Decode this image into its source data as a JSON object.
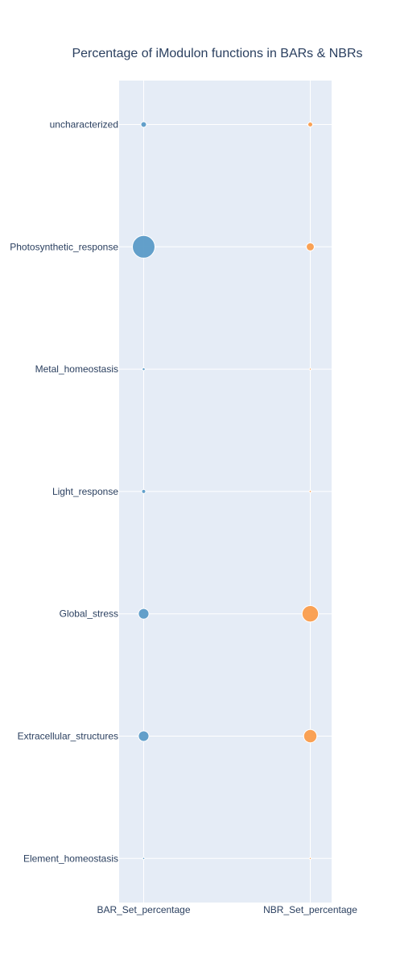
{
  "chart_data": {
    "type": "scatter",
    "title": "Percentage of iModulon functions in BARs & NBRs",
    "x": [
      "BAR_Set_percentage",
      "NBR_Set_percentage"
    ],
    "categories": [
      "uncharacterized",
      "Photosynthetic_response",
      "Metal_homeostasis",
      "Light_response",
      "Global_stress",
      "Extracellular_structures",
      "Element_homeostasis"
    ],
    "series": [
      {
        "x": "BAR_Set_percentage",
        "values": [
          2,
          32,
          0.5,
          1,
          7,
          7,
          0.3
        ],
        "color": "#5b9bc7"
      },
      {
        "x": "NBR_Set_percentage",
        "values": [
          1.5,
          4,
          0,
          0.3,
          17,
          11,
          0
        ]
      }
    ],
    "colors": {
      "bar_series": "#5b9bc7",
      "nbr_series": "#fa9d4c",
      "plot_bg": "#e5ecf6",
      "grid": "#ffffff"
    },
    "grid": true,
    "legend": "none"
  }
}
